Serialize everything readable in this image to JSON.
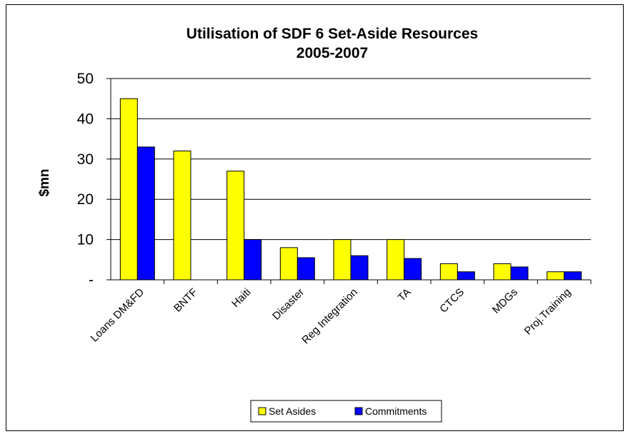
{
  "chart_data": {
    "type": "bar",
    "title": "Utilisation of SDF 6 Set-Aside Resources",
    "subtitle": "2005-2007",
    "xlabel": "",
    "ylabel": "$mn",
    "ylim": [
      0,
      50
    ],
    "yticks": [
      0,
      10,
      20,
      30,
      40,
      50
    ],
    "ytick_labels": [
      "-",
      "10",
      "20",
      "30",
      "40",
      "50"
    ],
    "grid": true,
    "legend_position": "bottom",
    "categories": [
      "Loans DM&FD",
      "BNTF",
      "Haiti",
      "Disaster",
      "Reg Integration",
      "TA",
      "CTCS",
      "MDGs",
      "Proj.Training"
    ],
    "series": [
      {
        "name": "Set Asides",
        "color": "#FFFF00",
        "values": [
          45,
          32,
          27,
          8,
          10,
          10,
          4,
          4,
          2
        ]
      },
      {
        "name": "Commitments",
        "color": "#0000FF",
        "values": [
          33,
          0,
          10,
          5.5,
          6,
          5.3,
          2,
          3.2,
          2
        ]
      }
    ]
  }
}
